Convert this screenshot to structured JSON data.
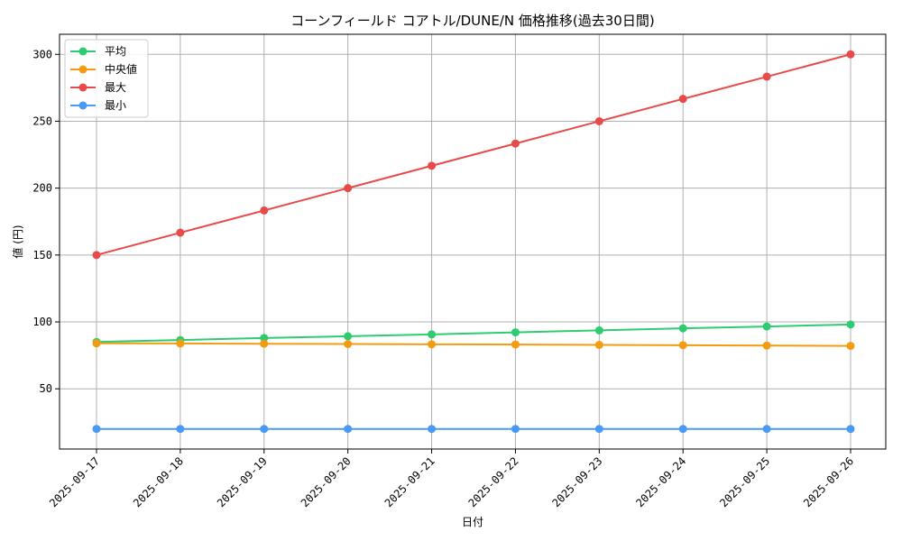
{
  "chart_data": {
    "type": "line",
    "title": "コーンフィールド コアトル/DUNE/N 価格推移(過去30日間)",
    "xlabel": "日付",
    "ylabel": "値 (円)",
    "categories": [
      "2025-09-17",
      "2025-09-18",
      "2025-09-19",
      "2025-09-20",
      "2025-09-21",
      "2025-09-22",
      "2025-09-23",
      "2025-09-24",
      "2025-09-25",
      "2025-09-26"
    ],
    "ylim": [
      5,
      315
    ],
    "yticks": [
      50,
      100,
      150,
      200,
      250,
      300
    ],
    "grid": true,
    "legend_position": "top-left",
    "series": [
      {
        "name": "平均",
        "color": "#2ecc71",
        "values": [
          85,
          86.5,
          88,
          89.3,
          90.7,
          92.2,
          93.7,
          95.2,
          96.6,
          98.1
        ]
      },
      {
        "name": "中央値",
        "color": "#f39c12",
        "values": [
          84,
          83.9,
          83.7,
          83.5,
          83.3,
          83.1,
          82.8,
          82.6,
          82.3,
          82.1
        ]
      },
      {
        "name": "最大",
        "color": "#e84a4a",
        "values": [
          150,
          166.7,
          183.3,
          200,
          216.7,
          233.3,
          250,
          266.7,
          283.3,
          300
        ]
      },
      {
        "name": "最小",
        "color": "#4a9af5",
        "values": [
          20,
          20,
          20,
          20,
          20,
          20,
          20,
          20,
          20,
          20
        ]
      }
    ]
  }
}
